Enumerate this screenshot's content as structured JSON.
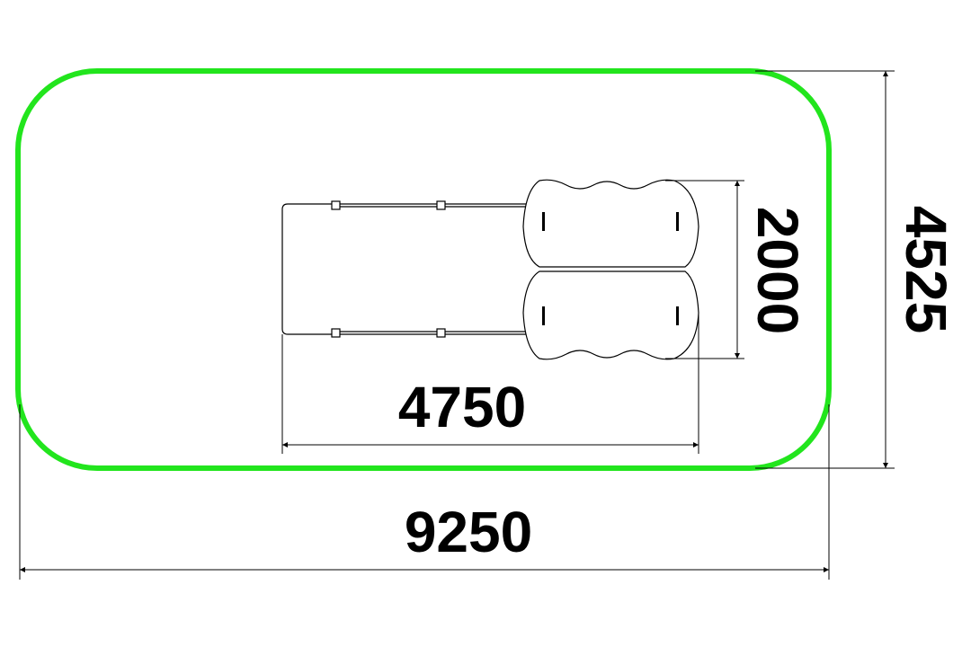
{
  "drawing": {
    "dimensions": {
      "overall_width": "9250",
      "overall_depth": "4525",
      "equipment_length": "4750",
      "equipment_width": "2000"
    },
    "colors": {
      "safety_zone": "#22e51d",
      "lines": "#000000",
      "background": "#ffffff"
    }
  }
}
